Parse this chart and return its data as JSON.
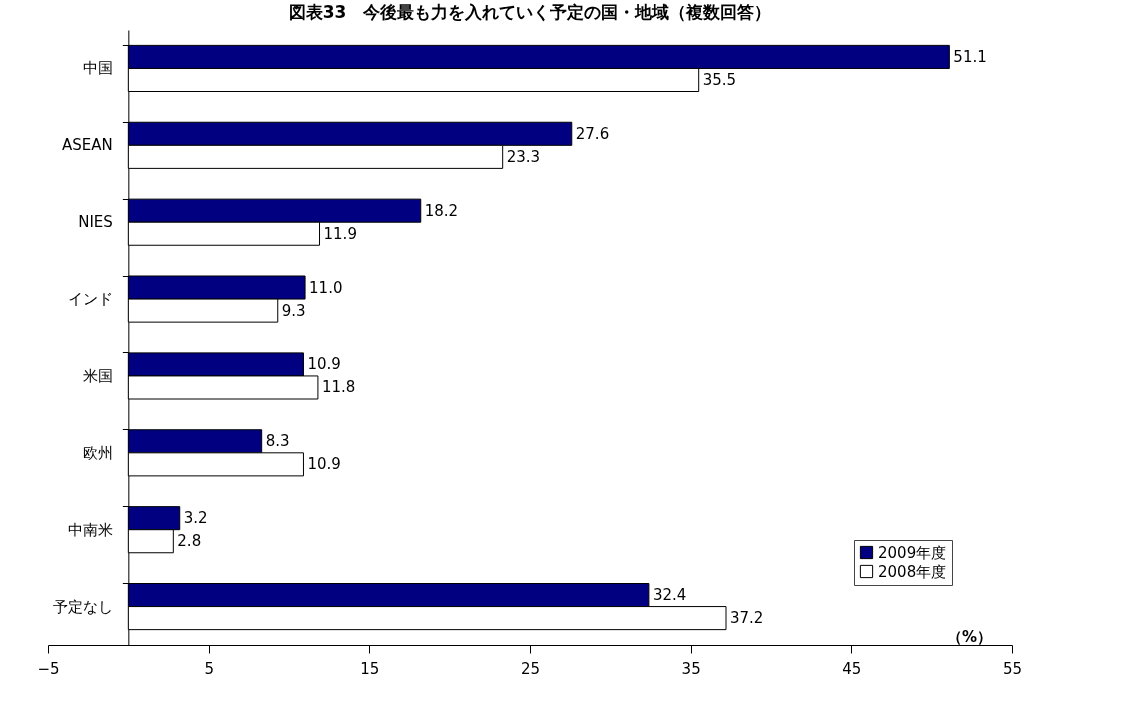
{
  "chart_data": {
    "type": "bar",
    "orientation": "horizontal",
    "title": "図表33　今後最も力を入れていく予定の国・地域（複数回答）",
    "categories": [
      "中国",
      "ASEAN",
      "NIES",
      "インド",
      "米国",
      "欧州",
      "中南米",
      "予定なし"
    ],
    "series": [
      {
        "name": "2009年度",
        "color": "#000080",
        "values": [
          51.1,
          27.6,
          18.2,
          11.0,
          10.9,
          8.3,
          3.2,
          32.4
        ],
        "value_labels": [
          "51.1",
          "27.6",
          "18.2",
          "11.0",
          "10.9",
          "8.3",
          "3.2",
          "32.4"
        ]
      },
      {
        "name": "2008年度",
        "color": "#ffffff",
        "values": [
          35.5,
          23.3,
          11.9,
          9.3,
          11.8,
          10.9,
          2.8,
          37.2
        ],
        "value_labels": [
          "35.5",
          "23.3",
          "11.9",
          "9.3",
          "11.8",
          "10.9",
          "2.8",
          "37.2"
        ]
      }
    ],
    "xlim": [
      -5,
      55
    ],
    "xticks": [
      -5,
      5,
      15,
      25,
      35,
      45,
      55
    ],
    "grid": false,
    "legend": "bottom right",
    "annotations": [
      "（%）"
    ]
  }
}
